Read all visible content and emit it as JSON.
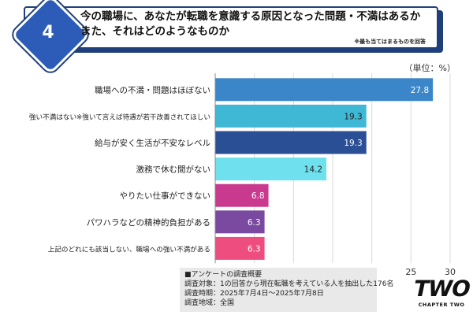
{
  "header": {
    "number": "4",
    "title_line1": "今の職場に、あなたが転職を意識する原因となった問題・不満はあるか",
    "title_line2": "また、それはどのようなものか",
    "note": "※最も当てはまるものを回答"
  },
  "unit_label": "（単位：%）",
  "chart_data": {
    "type": "bar",
    "orientation": "horizontal",
    "categories": [
      "職場への不満・問題はほぼない",
      "強い不満はない※強いて言えば待遇が若干改善されてほしい",
      "給与が安く生活が不安なレベル",
      "激務で休む間がない",
      "やりたい仕事ができない",
      "パワハラなどの精神的負担がある",
      "上記のどれにも該当しない、職場への強い不満がある"
    ],
    "values": [
      27.8,
      19.3,
      19.3,
      14.2,
      6.8,
      6.3,
      6.3
    ],
    "value_labels": [
      "27.8",
      "19.3",
      "19.3",
      "14.2",
      "6.8",
      "6.3",
      "6.3"
    ],
    "colors": [
      "#3b86c9",
      "#3fb8d6",
      "#2a4f94",
      "#6fe1ee",
      "#c93a8f",
      "#7a4aa0",
      "#ee4d80"
    ],
    "xlim": [
      0,
      30
    ],
    "x_ticks": [
      "0",
      "5",
      "10",
      "15",
      "20",
      "25",
      "30"
    ],
    "x_tick_values": [
      0,
      5,
      10,
      15,
      20,
      25,
      30
    ],
    "grid": true
  },
  "survey": {
    "heading": "■アンケートの調査概要",
    "target": "調査対象：1の回答から現在転職を考えている人を抽出した176名",
    "period": "調査時期：2025年7月4日～2025年7月8日",
    "region": "調査地域：全国"
  },
  "logo": {
    "main": "TWO",
    "sub": "CHAPTER TWO"
  }
}
